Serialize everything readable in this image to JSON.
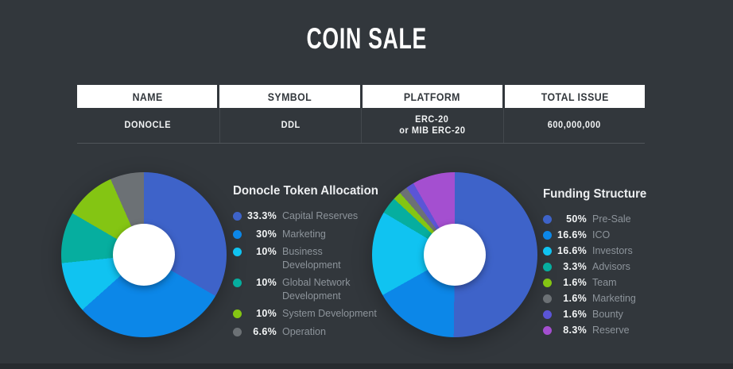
{
  "page": {
    "title": "COIN SALE"
  },
  "table": {
    "headers": [
      "NAME",
      "SYMBOL",
      "PLATFORM",
      "TOTAL ISSUE"
    ],
    "row": {
      "name": "DONOCLE",
      "symbol": "DDL",
      "platform_line1": "ERC-20",
      "platform_line2": "or MIB ERC-20",
      "total_issue": "600,000,000"
    }
  },
  "chart_data": [
    {
      "type": "pie",
      "variant": "donut",
      "title": "Donocle Token Allocation",
      "labels": [
        "Capital Reserves",
        "Marketing",
        "Business Development",
        "Global Network Development",
        "System Development",
        "Operation"
      ],
      "label_lines": [
        [
          "Capital Reserves"
        ],
        [
          "Marketing"
        ],
        [
          "Business",
          "Development"
        ],
        [
          "Global Network",
          "Development"
        ],
        [
          "System Development"
        ],
        [
          "Operation"
        ]
      ],
      "values": [
        33.3,
        30,
        10,
        10,
        10,
        6.6
      ],
      "percent_labels": [
        "33.3%",
        "30%",
        "10%",
        "10%",
        "10%",
        "6.6%"
      ],
      "colors": [
        "#3E63C9",
        "#0C87E8",
        "#10C3F1",
        "#06AE9F",
        "#84C513",
        "#6C7175"
      ],
      "start_angle_deg": 0,
      "direction": "clockwise",
      "hole_ratio": 0.375,
      "legend_position": "right"
    },
    {
      "type": "pie",
      "variant": "donut",
      "title": "Funding Structure",
      "labels": [
        "Pre-Sale",
        "ICO",
        "Investors",
        "Advisors",
        "Team",
        "Marketing",
        "Bounty",
        "Reserve"
      ],
      "label_lines": [
        [
          "Pre-Sale"
        ],
        [
          "ICO"
        ],
        [
          "Investors"
        ],
        [
          "Advisors"
        ],
        [
          "Team"
        ],
        [
          "Marketing"
        ],
        [
          "Bounty"
        ],
        [
          "Reserve"
        ]
      ],
      "values": [
        50,
        16.6,
        16.6,
        3.3,
        1.6,
        1.6,
        1.6,
        8.3
      ],
      "percent_labels": [
        "50%",
        "16.6%",
        "16.6%",
        "3.3%",
        "1.6%",
        "1.6%",
        "1.6%",
        "8.3%"
      ],
      "colors": [
        "#3E63C9",
        "#0C87E8",
        "#10C3F1",
        "#06AE9F",
        "#84C513",
        "#6C7175",
        "#5B55D6",
        "#A44FD0"
      ],
      "start_angle_deg": 0,
      "direction": "clockwise",
      "hole_ratio": 0.375,
      "legend_position": "right"
    }
  ],
  "theme": {
    "background": "#32373C",
    "footer_strip": "#272B2F",
    "table_header_bg": "#FFFFFF",
    "table_header_text": "#33383D",
    "table_body_text": "#F2F4F5",
    "legend_title_text": "#ECEEF0",
    "legend_percent_text": "#F3F5F6",
    "legend_label_text": "#8D949B",
    "donut_hole": "#FFFFFF"
  }
}
